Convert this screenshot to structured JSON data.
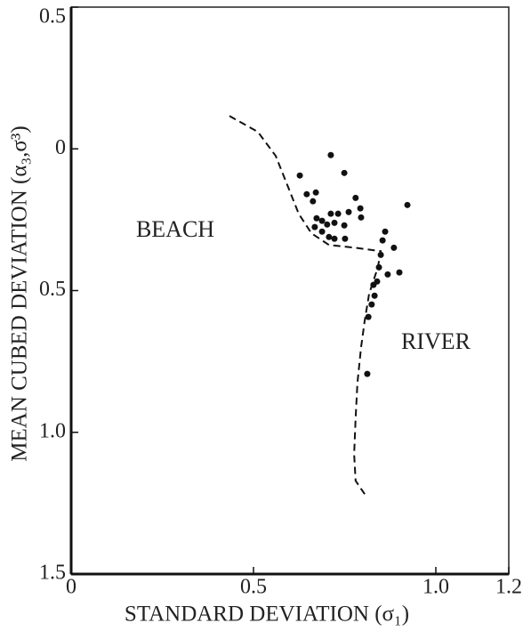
{
  "chart_data": {
    "type": "scatter",
    "x_label": "STANDARD DEVIATION (σ₁)",
    "y_label": "MEAN CUBED DEVIATION (α₃,σ³)",
    "annotations": [
      "BEACH",
      "RIVER"
    ],
    "xlim": [
      0,
      1.2
    ],
    "xticks": [
      0,
      0.5,
      {
        "value": 1,
        "label": "1.0"
      },
      1.2
    ],
    "ylim": [
      -0.5,
      1.5
    ],
    "y_inverted": true,
    "yticks": [
      {
        "value": -0.5,
        "label": "0.5"
      },
      0,
      0.5,
      {
        "value": 1,
        "label": "1.0"
      },
      1.5
    ],
    "color": "#111111",
    "points": {
      "x": [
        0.712,
        0.749,
        0.627,
        0.922,
        0.78,
        0.646,
        0.671,
        0.663,
        0.793,
        0.712,
        0.732,
        0.761,
        0.673,
        0.688,
        0.702,
        0.722,
        0.749,
        0.668,
        0.688,
        0.707,
        0.722,
        0.751,
        0.861,
        0.795,
        0.854,
        0.885,
        0.849,
        0.844,
        0.9,
        0.868,
        0.829,
        0.839,
        0.832,
        0.824,
        0.815,
        0.812
      ],
      "y": [
        0.022,
        0.085,
        0.094,
        0.198,
        0.173,
        0.16,
        0.154,
        0.185,
        0.21,
        0.229,
        0.229,
        0.223,
        0.245,
        0.254,
        0.267,
        0.261,
        0.27,
        0.276,
        0.292,
        0.311,
        0.317,
        0.317,
        0.292,
        0.242,
        0.323,
        0.349,
        0.374,
        0.418,
        0.436,
        0.443,
        0.48,
        0.468,
        0.518,
        0.549,
        0.593,
        0.794
      ]
    },
    "curve": {
      "x": [
        0.434,
        0.512,
        0.561,
        0.595,
        0.624,
        0.659,
        0.707,
        0.78,
        0.849,
        0.841,
        0.817,
        0.805,
        0.795,
        0.785,
        0.78,
        0.776,
        0.78,
        0.805
      ],
      "y": [
        -0.116,
        -0.06,
        0.025,
        0.135,
        0.229,
        0.298,
        0.339,
        0.349,
        0.361,
        0.418,
        0.512,
        0.606,
        0.7,
        0.826,
        0.951,
        1.077,
        1.171,
        1.218
      ]
    }
  }
}
